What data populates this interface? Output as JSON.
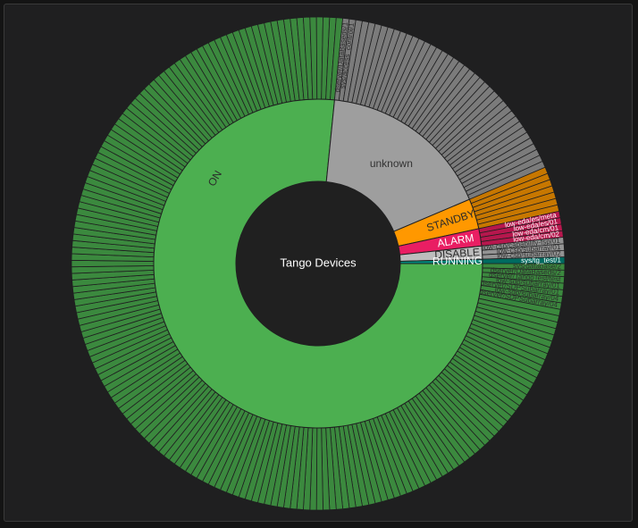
{
  "chart_data": {
    "type": "sunburst",
    "title": "Tango Devices",
    "colors": {
      "ON": "#4caf50",
      "unknown": "#9e9e9e",
      "STANDBY": "#ff9800",
      "ALARM": "#e91e63",
      "DISABLE": "#bdbdbd",
      "RUNNING": "#00897b",
      "background": "#1f1f20",
      "center": "#202020"
    },
    "states": [
      {
        "name": "ON",
        "label": "ON",
        "count": 180,
        "devices": [
          "sys/database/2",
          "dserver/DataBaseds/2",
          "dserver/TangoTest/test",
          "low-sdp/subarray/01",
          "dserver/SDPSubarray/01",
          "low-sdp/subarray/04",
          "dserver/SDPSubarray/04"
        ]
      },
      {
        "name": "unknown",
        "label": "unknown",
        "count": 40,
        "devices": [
          "dserver/DataBaseds/1",
          "sys/access_control/1"
        ]
      },
      {
        "name": "STANDBY",
        "label": "STANDBY",
        "count": 7,
        "devices": []
      },
      {
        "name": "ALARM",
        "label": "ALARM",
        "count": 4,
        "devices": [
          "low-eda/es/meta",
          "low-eda/es/01",
          "low-eda/cm/01",
          "low-eda/cm/02"
        ]
      },
      {
        "name": "DISABLE",
        "label": "DISABLE",
        "count": 3,
        "devices": [
          "low-csp/capability-fsp/01",
          "low-csp/subarray/01",
          "low-csp/subarray/02"
        ]
      },
      {
        "name": "RUNNING",
        "label": "RUNNING",
        "count": 1,
        "devices": [
          "sys/tg_test/1"
        ]
      }
    ]
  }
}
